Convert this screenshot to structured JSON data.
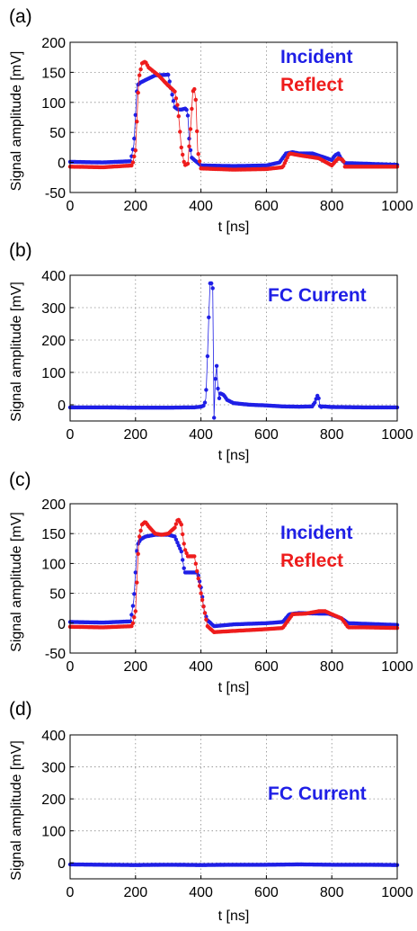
{
  "colors": {
    "blue": "#1f1fe6",
    "red": "#ee1c1c"
  },
  "chart_data": [
    {
      "type": "scatter",
      "panel_label": "(a)",
      "xlabel": "t [ns]",
      "ylabel": "Signal amplitude  [mV]",
      "xlim": [
        0,
        1000
      ],
      "ylim": [
        -50,
        200
      ],
      "xticks": [
        0,
        200,
        400,
        600,
        800,
        1000
      ],
      "yticks": [
        -50,
        0,
        50,
        100,
        150,
        200
      ],
      "grid": true,
      "legend_position": "top-right",
      "series": [
        {
          "name": "Incident",
          "color": "#1f1fe6",
          "x": [
            0,
            100,
            185,
            195,
            205,
            215,
            230,
            260,
            300,
            310,
            320,
            330,
            340,
            355,
            360,
            365,
            372,
            380,
            400,
            500,
            600,
            640,
            660,
            680,
            700,
            740,
            780,
            800,
            810,
            820,
            830,
            840,
            900,
            1000
          ],
          "y": [
            1,
            0,
            2,
            30,
            128,
            133,
            137,
            145,
            146,
            118,
            92,
            88,
            88,
            90,
            78,
            30,
            8,
            4,
            -5,
            -6,
            -5,
            0,
            15,
            17,
            15,
            15,
            8,
            4,
            12,
            15,
            5,
            -1,
            -2,
            -4
          ]
        },
        {
          "name": "Reflect",
          "color": "#ee1c1c",
          "x": [
            0,
            100,
            190,
            200,
            210,
            220,
            230,
            240,
            270,
            300,
            320,
            330,
            340,
            350,
            360,
            370,
            375,
            380,
            385,
            390,
            400,
            500,
            600,
            650,
            670,
            700,
            760,
            800,
            820,
            835,
            840,
            900,
            1000
          ],
          "y": [
            -7,
            -8,
            -5,
            20,
            140,
            165,
            168,
            158,
            145,
            128,
            118,
            90,
            25,
            -5,
            -2,
            70,
            118,
            122,
            100,
            20,
            -10,
            -12,
            -11,
            -8,
            15,
            12,
            7,
            -5,
            7,
            4,
            -7,
            -7,
            -7
          ]
        }
      ]
    },
    {
      "type": "scatter",
      "panel_label": "(b)",
      "xlabel": "t [ns]",
      "ylabel": "Signal amplitude  [mV]",
      "xlim": [
        0,
        1000
      ],
      "ylim": [
        -50,
        400
      ],
      "xticks": [
        0,
        200,
        400,
        600,
        800,
        1000
      ],
      "yticks": [
        0,
        100,
        200,
        300,
        400
      ],
      "grid": true,
      "legend_position": "top-right",
      "series": [
        {
          "name": "FC Current",
          "color": "#1f1fe6",
          "x": [
            0,
            100,
            200,
            300,
            380,
            400,
            410,
            415,
            420,
            425,
            428,
            432,
            436,
            440,
            444,
            448,
            452,
            456,
            460,
            470,
            480,
            490,
            500,
            520,
            550,
            600,
            650,
            700,
            740,
            750,
            755,
            760,
            765,
            770,
            800,
            900,
            1000
          ],
          "y": [
            -8,
            -8,
            -9,
            -9,
            -8,
            -6,
            -2,
            20,
            150,
            300,
            375,
            375,
            360,
            -40,
            80,
            120,
            50,
            20,
            35,
            30,
            15,
            10,
            5,
            3,
            0,
            -2,
            -5,
            -6,
            -5,
            10,
            30,
            20,
            -10,
            -5,
            -7,
            -8,
            -8
          ]
        }
      ]
    },
    {
      "type": "scatter",
      "panel_label": "(c)",
      "xlabel": "t [ns]",
      "ylabel": "Signal amplitude  [mV]",
      "xlim": [
        0,
        1000
      ],
      "ylim": [
        -50,
        200
      ],
      "xticks": [
        0,
        200,
        400,
        600,
        800,
        1000
      ],
      "yticks": [
        -50,
        0,
        50,
        100,
        150,
        200
      ],
      "grid": true,
      "legend_position": "top-right",
      "series": [
        {
          "name": "Incident",
          "color": "#1f1fe6",
          "x": [
            0,
            100,
            185,
            195,
            205,
            215,
            230,
            260,
            300,
            320,
            340,
            350,
            360,
            375,
            390,
            400,
            410,
            420,
            440,
            500,
            600,
            650,
            670,
            700,
            760,
            790,
            810,
            830,
            850,
            900,
            1000
          ],
          "y": [
            2,
            1,
            3,
            40,
            130,
            140,
            145,
            148,
            148,
            145,
            120,
            85,
            85,
            85,
            85,
            60,
            20,
            5,
            -5,
            -2,
            0,
            2,
            15,
            17,
            16,
            16,
            12,
            8,
            0,
            -1,
            -3
          ]
        },
        {
          "name": "Reflect",
          "color": "#ee1c1c",
          "x": [
            0,
            100,
            190,
            200,
            210,
            220,
            230,
            240,
            260,
            280,
            300,
            320,
            330,
            340,
            350,
            360,
            380,
            400,
            420,
            440,
            500,
            600,
            650,
            680,
            720,
            760,
            780,
            800,
            830,
            850,
            900,
            1000
          ],
          "y": [
            -6,
            -7,
            -5,
            20,
            140,
            165,
            170,
            162,
            150,
            148,
            150,
            160,
            175,
            165,
            125,
            112,
            112,
            50,
            -5,
            -15,
            -13,
            -10,
            -8,
            15,
            16,
            20,
            20,
            15,
            8,
            -7,
            -7,
            -8
          ]
        }
      ]
    },
    {
      "type": "scatter",
      "panel_label": "(d)",
      "xlabel": "t [ns]",
      "ylabel": "Signal amplitude  [mV]",
      "xlim": [
        0,
        1000
      ],
      "ylim": [
        -50,
        400
      ],
      "xticks": [
        0,
        200,
        400,
        600,
        800,
        1000
      ],
      "yticks": [
        0,
        100,
        200,
        300,
        400
      ],
      "grid": true,
      "legend_position": "top-right",
      "series": [
        {
          "name": "FC Current",
          "color": "#1f1fe6",
          "x": [
            0,
            100,
            200,
            300,
            400,
            500,
            600,
            700,
            800,
            900,
            1000
          ],
          "y": [
            -5,
            -6,
            -7,
            -6,
            -7,
            -6,
            -6,
            -5,
            -6,
            -6,
            -7
          ]
        }
      ]
    }
  ]
}
